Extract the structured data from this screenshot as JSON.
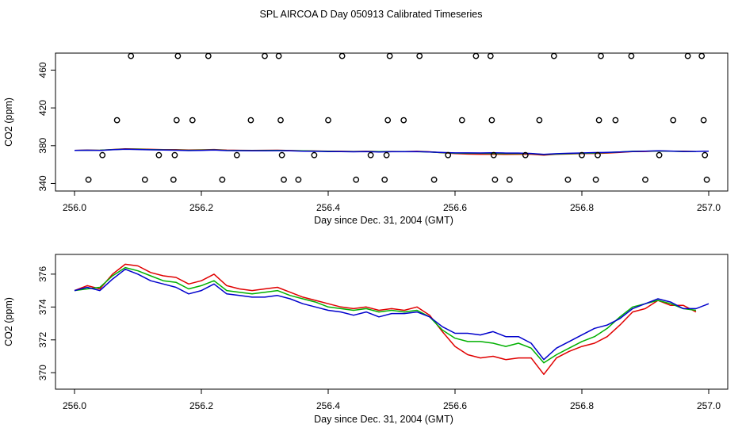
{
  "page": {
    "title": "SPL AIRCOA D  Day 050913  Calibrated Timeseries"
  },
  "colors": {
    "red": "#e00000",
    "green": "#00b000",
    "blue": "#0000cc",
    "axis": "#000000"
  },
  "chart_data": [
    {
      "type": "scatter",
      "title": "SPL AIRCOA D  Day 050913  Calibrated Timeseries",
      "xlabel": "Day since Dec. 31, 2004 (GMT)",
      "ylabel": "CO2 (ppm)",
      "xlim": [
        255.97,
        257.03
      ],
      "ylim": [
        332,
        478
      ],
      "xticks": [
        256.0,
        256.2,
        256.4,
        256.6,
        256.8,
        257.0
      ],
      "xtick_labels": [
        "256.0",
        "256.2",
        "256.4",
        "256.6",
        "256.8",
        "257.0"
      ],
      "yticks": [
        340,
        380,
        420,
        460
      ],
      "ytick_labels": [
        "340",
        "380",
        "420",
        "460"
      ],
      "calibration_points": {
        "marker": "open circle",
        "x": [
          256.022,
          256.044,
          256.067,
          256.089,
          256.111,
          256.133,
          256.156,
          256.158,
          256.161,
          256.163,
          256.186,
          256.211,
          256.233,
          256.256,
          256.278,
          256.3,
          256.322,
          256.325,
          256.327,
          256.33,
          256.353,
          256.378,
          256.4,
          256.422,
          256.444,
          256.467,
          256.489,
          256.492,
          256.494,
          256.497,
          256.519,
          256.544,
          256.567,
          256.589,
          256.611,
          256.633,
          256.656,
          256.658,
          256.661,
          256.663,
          256.686,
          256.711,
          256.733,
          256.756,
          256.778,
          256.8,
          256.822,
          256.825,
          256.827,
          256.83,
          256.853,
          256.878,
          256.9,
          256.922,
          256.944,
          256.967,
          256.989,
          256.992,
          256.994,
          256.997
        ],
        "y": [
          344,
          370,
          407,
          475,
          344,
          370,
          344,
          370,
          407,
          475,
          407,
          475,
          344,
          370,
          407,
          475,
          475,
          407,
          370,
          344,
          344,
          370,
          407,
          475,
          344,
          370,
          344,
          370,
          407,
          475,
          407,
          475,
          344,
          370,
          407,
          475,
          475,
          407,
          370,
          344,
          344,
          370,
          407,
          475,
          344,
          370,
          344,
          370,
          407,
          475,
          407,
          475,
          344,
          370,
          407,
          475,
          475,
          407,
          370,
          344
        ]
      },
      "series_note": "Red, green and blue CO2 traces of the lower panel are drawn along the ~374 ppm line in this panel."
    },
    {
      "type": "line",
      "xlabel": "Day since Dec. 31, 2004 (GMT)",
      "ylabel": "CO2 (ppm)",
      "xlim": [
        255.97,
        257.03
      ],
      "ylim": [
        369.0,
        377.2
      ],
      "xticks": [
        256.0,
        256.2,
        256.4,
        256.6,
        256.8,
        257.0
      ],
      "xtick_labels": [
        "256.0",
        "256.2",
        "256.4",
        "256.6",
        "256.8",
        "257.0"
      ],
      "yticks": [
        370,
        372,
        374,
        376
      ],
      "ytick_labels": [
        "370",
        "372",
        "374",
        "376"
      ],
      "x": [
        256.0,
        256.02,
        256.04,
        256.06,
        256.08,
        256.1,
        256.12,
        256.14,
        256.16,
        256.18,
        256.2,
        256.22,
        256.24,
        256.26,
        256.28,
        256.3,
        256.32,
        256.34,
        256.36,
        256.38,
        256.4,
        256.42,
        256.44,
        256.46,
        256.48,
        256.5,
        256.52,
        256.54,
        256.56,
        256.58,
        256.6,
        256.62,
        256.64,
        256.66,
        256.68,
        256.7,
        256.72,
        256.74,
        256.76,
        256.78,
        256.8,
        256.82,
        256.84,
        256.86,
        256.88,
        256.9,
        256.92,
        256.94,
        256.96,
        256.98,
        257.0
      ],
      "series": [
        {
          "name": "red",
          "color": "#e00000",
          "values": [
            375.0,
            375.3,
            375.1,
            376.0,
            376.6,
            376.5,
            376.1,
            375.9,
            375.8,
            375.4,
            375.6,
            376.0,
            375.3,
            375.1,
            375.0,
            375.1,
            375.2,
            374.9,
            374.6,
            374.4,
            374.2,
            374.0,
            373.9,
            374.0,
            373.8,
            373.9,
            373.8,
            374.0,
            373.5,
            372.5,
            371.6,
            371.1,
            370.9,
            371.0,
            370.8,
            370.9,
            370.9,
            369.9,
            370.9,
            371.3,
            371.6,
            371.8,
            372.2,
            372.9,
            373.7,
            373.9,
            374.4,
            374.1,
            374.1,
            373.7,
            null
          ]
        },
        {
          "name": "green",
          "color": "#00b000",
          "values": [
            375.0,
            375.1,
            375.2,
            375.9,
            376.4,
            376.2,
            375.9,
            375.6,
            375.5,
            375.1,
            375.3,
            375.6,
            375.0,
            374.9,
            374.8,
            374.9,
            375.0,
            374.7,
            374.5,
            374.3,
            374.0,
            373.9,
            373.8,
            373.9,
            373.7,
            373.8,
            373.7,
            373.8,
            373.4,
            372.6,
            372.1,
            371.9,
            371.9,
            371.8,
            371.6,
            371.8,
            371.5,
            370.6,
            371.1,
            371.5,
            371.9,
            372.2,
            372.7,
            373.4,
            374.0,
            374.2,
            374.4,
            374.2,
            373.9,
            373.8,
            null
          ]
        },
        {
          "name": "blue",
          "color": "#0000cc",
          "values": [
            375.0,
            375.2,
            375.0,
            375.7,
            376.3,
            376.0,
            375.6,
            375.4,
            375.2,
            374.8,
            375.0,
            375.4,
            374.8,
            374.7,
            374.6,
            374.6,
            374.7,
            374.5,
            374.2,
            374.0,
            373.8,
            373.7,
            373.5,
            373.7,
            373.4,
            373.6,
            373.6,
            373.7,
            373.4,
            372.8,
            372.4,
            372.4,
            372.3,
            372.5,
            372.2,
            372.2,
            371.8,
            370.8,
            371.5,
            371.9,
            372.3,
            372.7,
            372.9,
            373.3,
            373.9,
            374.2,
            374.5,
            374.3,
            373.9,
            373.9,
            374.2
          ]
        }
      ]
    }
  ]
}
